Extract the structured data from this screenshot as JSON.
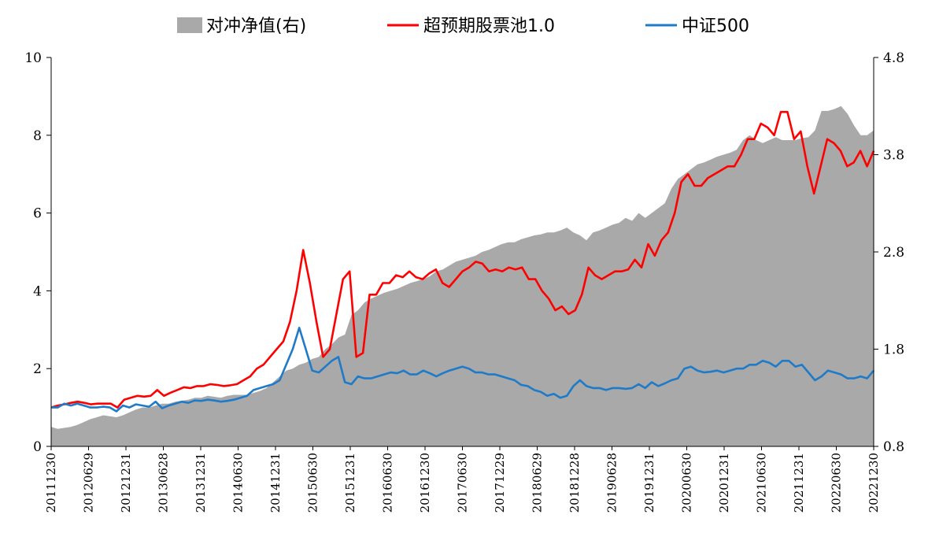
{
  "chart_data": {
    "type": "line",
    "title": "",
    "legend": {
      "placement": "top-center",
      "items": [
        {
          "label": "对冲净值(右)",
          "kind": "area",
          "color": "#a9a9a9"
        },
        {
          "label": "超预期股票池1.0",
          "kind": "line",
          "color": "#ff0000"
        },
        {
          "label": "中证500",
          "kind": "line",
          "color": "#1f7bc8"
        }
      ]
    },
    "left_axis": {
      "ylim": [
        0,
        10
      ],
      "ticks": [
        "0",
        "2",
        "4",
        "6",
        "8",
        "10"
      ]
    },
    "right_axis": {
      "ylim": [
        0.8,
        4.8
      ],
      "ticks": [
        "0.8",
        "1.8",
        "2.8",
        "3.8",
        "4.8"
      ]
    },
    "x_tick_labels": [
      "20111230",
      "20120629",
      "20121231",
      "20130628",
      "20131231",
      "20140630",
      "20141231",
      "20150630",
      "20151231",
      "20160630",
      "20161230",
      "20170630",
      "20171229",
      "20180629",
      "20181228",
      "20190628",
      "20191231",
      "20200630",
      "20201231",
      "20210630",
      "20211231",
      "20220630",
      "20221230"
    ],
    "series": [
      {
        "name": "超预期股票池1.0",
        "axis": "left",
        "color": "#ff0000",
        "values": [
          1.0,
          1.05,
          1.08,
          1.12,
          1.15,
          1.12,
          1.08,
          1.1,
          1.1,
          1.1,
          1.0,
          1.2,
          1.25,
          1.3,
          1.28,
          1.3,
          1.45,
          1.3,
          1.38,
          1.45,
          1.52,
          1.5,
          1.55,
          1.55,
          1.6,
          1.58,
          1.55,
          1.57,
          1.6,
          1.7,
          1.8,
          2.0,
          2.1,
          2.3,
          2.5,
          2.7,
          3.2,
          4.0,
          5.05,
          4.2,
          3.2,
          2.3,
          2.5,
          3.4,
          4.3,
          4.5,
          2.3,
          2.4,
          3.9,
          3.9,
          4.2,
          4.2,
          4.4,
          4.35,
          4.5,
          4.35,
          4.3,
          4.45,
          4.55,
          4.2,
          4.1,
          4.3,
          4.5,
          4.6,
          4.75,
          4.7,
          4.5,
          4.55,
          4.5,
          4.6,
          4.55,
          4.6,
          4.3,
          4.3,
          4.0,
          3.8,
          3.5,
          3.6,
          3.4,
          3.5,
          3.9,
          4.6,
          4.4,
          4.3,
          4.4,
          4.5,
          4.5,
          4.55,
          4.8,
          4.6,
          5.2,
          4.9,
          5.3,
          5.5,
          6.0,
          6.8,
          7.0,
          6.7,
          6.7,
          6.9,
          7.0,
          7.1,
          7.2,
          7.2,
          7.5,
          7.9,
          7.9,
          8.3,
          8.2,
          8.0,
          8.6,
          8.6,
          7.9,
          8.1,
          7.2,
          6.5,
          7.2,
          7.9,
          7.8,
          7.6,
          7.2,
          7.3,
          7.6,
          7.2,
          7.6
        ]
      },
      {
        "name": "中证500",
        "axis": "left",
        "color": "#1f7bc8",
        "values": [
          1.0,
          1.0,
          1.1,
          1.05,
          1.1,
          1.05,
          1.0,
          1.0,
          1.02,
          1.0,
          0.9,
          1.05,
          1.0,
          1.08,
          1.05,
          1.02,
          1.15,
          0.98,
          1.05,
          1.1,
          1.15,
          1.12,
          1.18,
          1.17,
          1.2,
          1.18,
          1.15,
          1.17,
          1.2,
          1.25,
          1.3,
          1.45,
          1.5,
          1.55,
          1.6,
          1.7,
          2.1,
          2.5,
          3.05,
          2.5,
          1.95,
          1.9,
          2.05,
          2.2,
          2.3,
          1.65,
          1.6,
          1.8,
          1.75,
          1.75,
          1.8,
          1.85,
          1.9,
          1.88,
          1.95,
          1.85,
          1.85,
          1.95,
          1.88,
          1.8,
          1.88,
          1.95,
          2.0,
          2.05,
          2.0,
          1.9,
          1.9,
          1.85,
          1.85,
          1.8,
          1.75,
          1.7,
          1.58,
          1.55,
          1.45,
          1.4,
          1.3,
          1.35,
          1.25,
          1.3,
          1.55,
          1.7,
          1.55,
          1.5,
          1.5,
          1.45,
          1.5,
          1.5,
          1.48,
          1.5,
          1.6,
          1.5,
          1.65,
          1.55,
          1.62,
          1.7,
          1.75,
          2.0,
          2.05,
          1.95,
          1.9,
          1.92,
          1.95,
          1.9,
          1.95,
          2.0,
          2.0,
          2.1,
          2.1,
          2.2,
          2.15,
          2.05,
          2.2,
          2.2,
          2.05,
          2.1,
          1.9,
          1.7,
          1.8,
          1.95,
          1.9,
          1.85,
          1.75,
          1.75,
          1.8,
          1.75,
          1.95
        ]
      },
      {
        "name": "对冲净值(右)",
        "axis": "right",
        "color": "#a9a9a9",
        "type": "area",
        "values": [
          1.0,
          0.98,
          0.99,
          1.0,
          1.02,
          1.05,
          1.08,
          1.1,
          1.12,
          1.11,
          1.1,
          1.12,
          1.15,
          1.18,
          1.2,
          1.2,
          1.22,
          1.24,
          1.24,
          1.26,
          1.27,
          1.28,
          1.3,
          1.3,
          1.32,
          1.31,
          1.3,
          1.32,
          1.33,
          1.33,
          1.33,
          1.35,
          1.37,
          1.4,
          1.46,
          1.52,
          1.58,
          1.6,
          1.64,
          1.66,
          1.7,
          1.72,
          1.8,
          1.85,
          1.92,
          1.95,
          2.15,
          2.2,
          2.28,
          2.32,
          2.35,
          2.38,
          2.4,
          2.42,
          2.45,
          2.48,
          2.5,
          2.52,
          2.55,
          2.6,
          2.62,
          2.66,
          2.7,
          2.72,
          2.74,
          2.76,
          2.8,
          2.82,
          2.85,
          2.88,
          2.9,
          2.9,
          2.93,
          2.95,
          2.97,
          2.98,
          3.0,
          3.0,
          3.02,
          3.05,
          3.0,
          2.97,
          2.92,
          3.0,
          3.02,
          3.05,
          3.08,
          3.1,
          3.15,
          3.12,
          3.2,
          3.15,
          3.2,
          3.25,
          3.3,
          3.45,
          3.55,
          3.6,
          3.65,
          3.7,
          3.72,
          3.75,
          3.78,
          3.8,
          3.82,
          3.85,
          3.95,
          4.0,
          3.95,
          3.92,
          3.95,
          3.98,
          3.95,
          3.95,
          3.95,
          3.97,
          3.98,
          4.05,
          4.25,
          4.25,
          4.27,
          4.3,
          4.22,
          4.1,
          4.0,
          4.0,
          4.05
        ]
      }
    ]
  }
}
